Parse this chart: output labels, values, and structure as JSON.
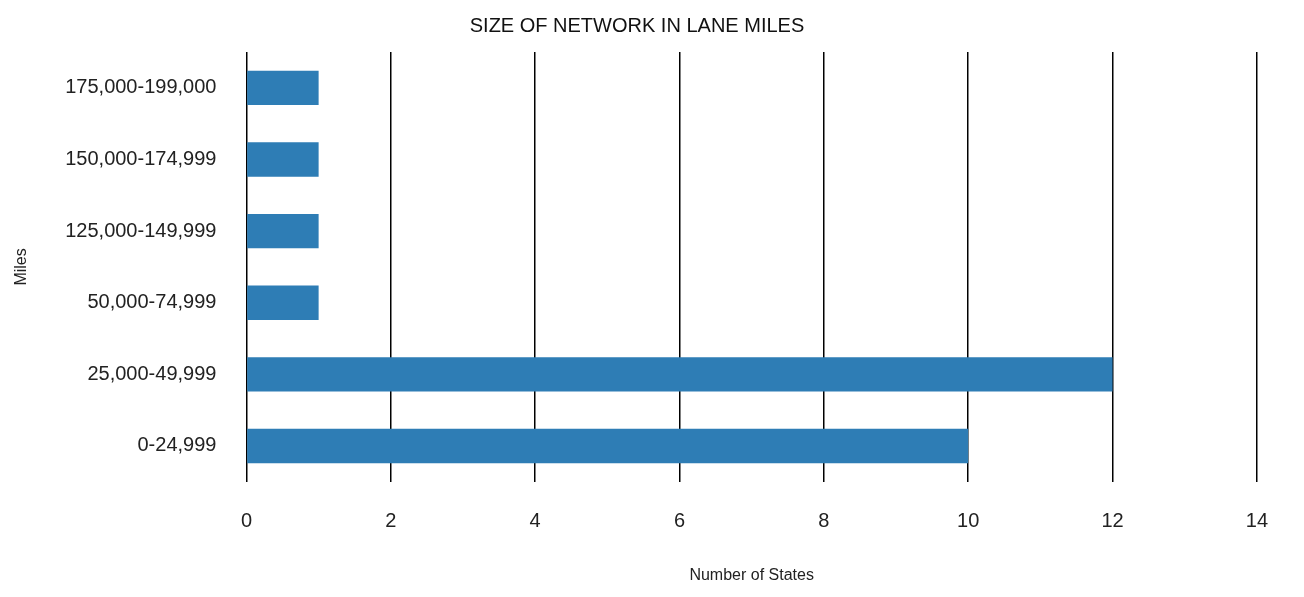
{
  "chart_data": {
    "type": "bar",
    "orientation": "horizontal",
    "title": "SIZE OF NETWORK IN LANE MILES",
    "xlabel": "Number of States",
    "ylabel": "Miles",
    "categories": [
      "175,000-199,000",
      "150,000-174,999",
      "125,000-149,999",
      "50,000-74,999",
      "25,000-49,999",
      "0-24,999"
    ],
    "values": [
      1,
      1,
      1,
      1,
      12,
      10
    ],
    "color": "#2e7db5",
    "xlim": [
      0,
      14
    ],
    "xticks": [
      0,
      2,
      4,
      6,
      8,
      10,
      12,
      14
    ],
    "grid": "x",
    "legend": false
  }
}
